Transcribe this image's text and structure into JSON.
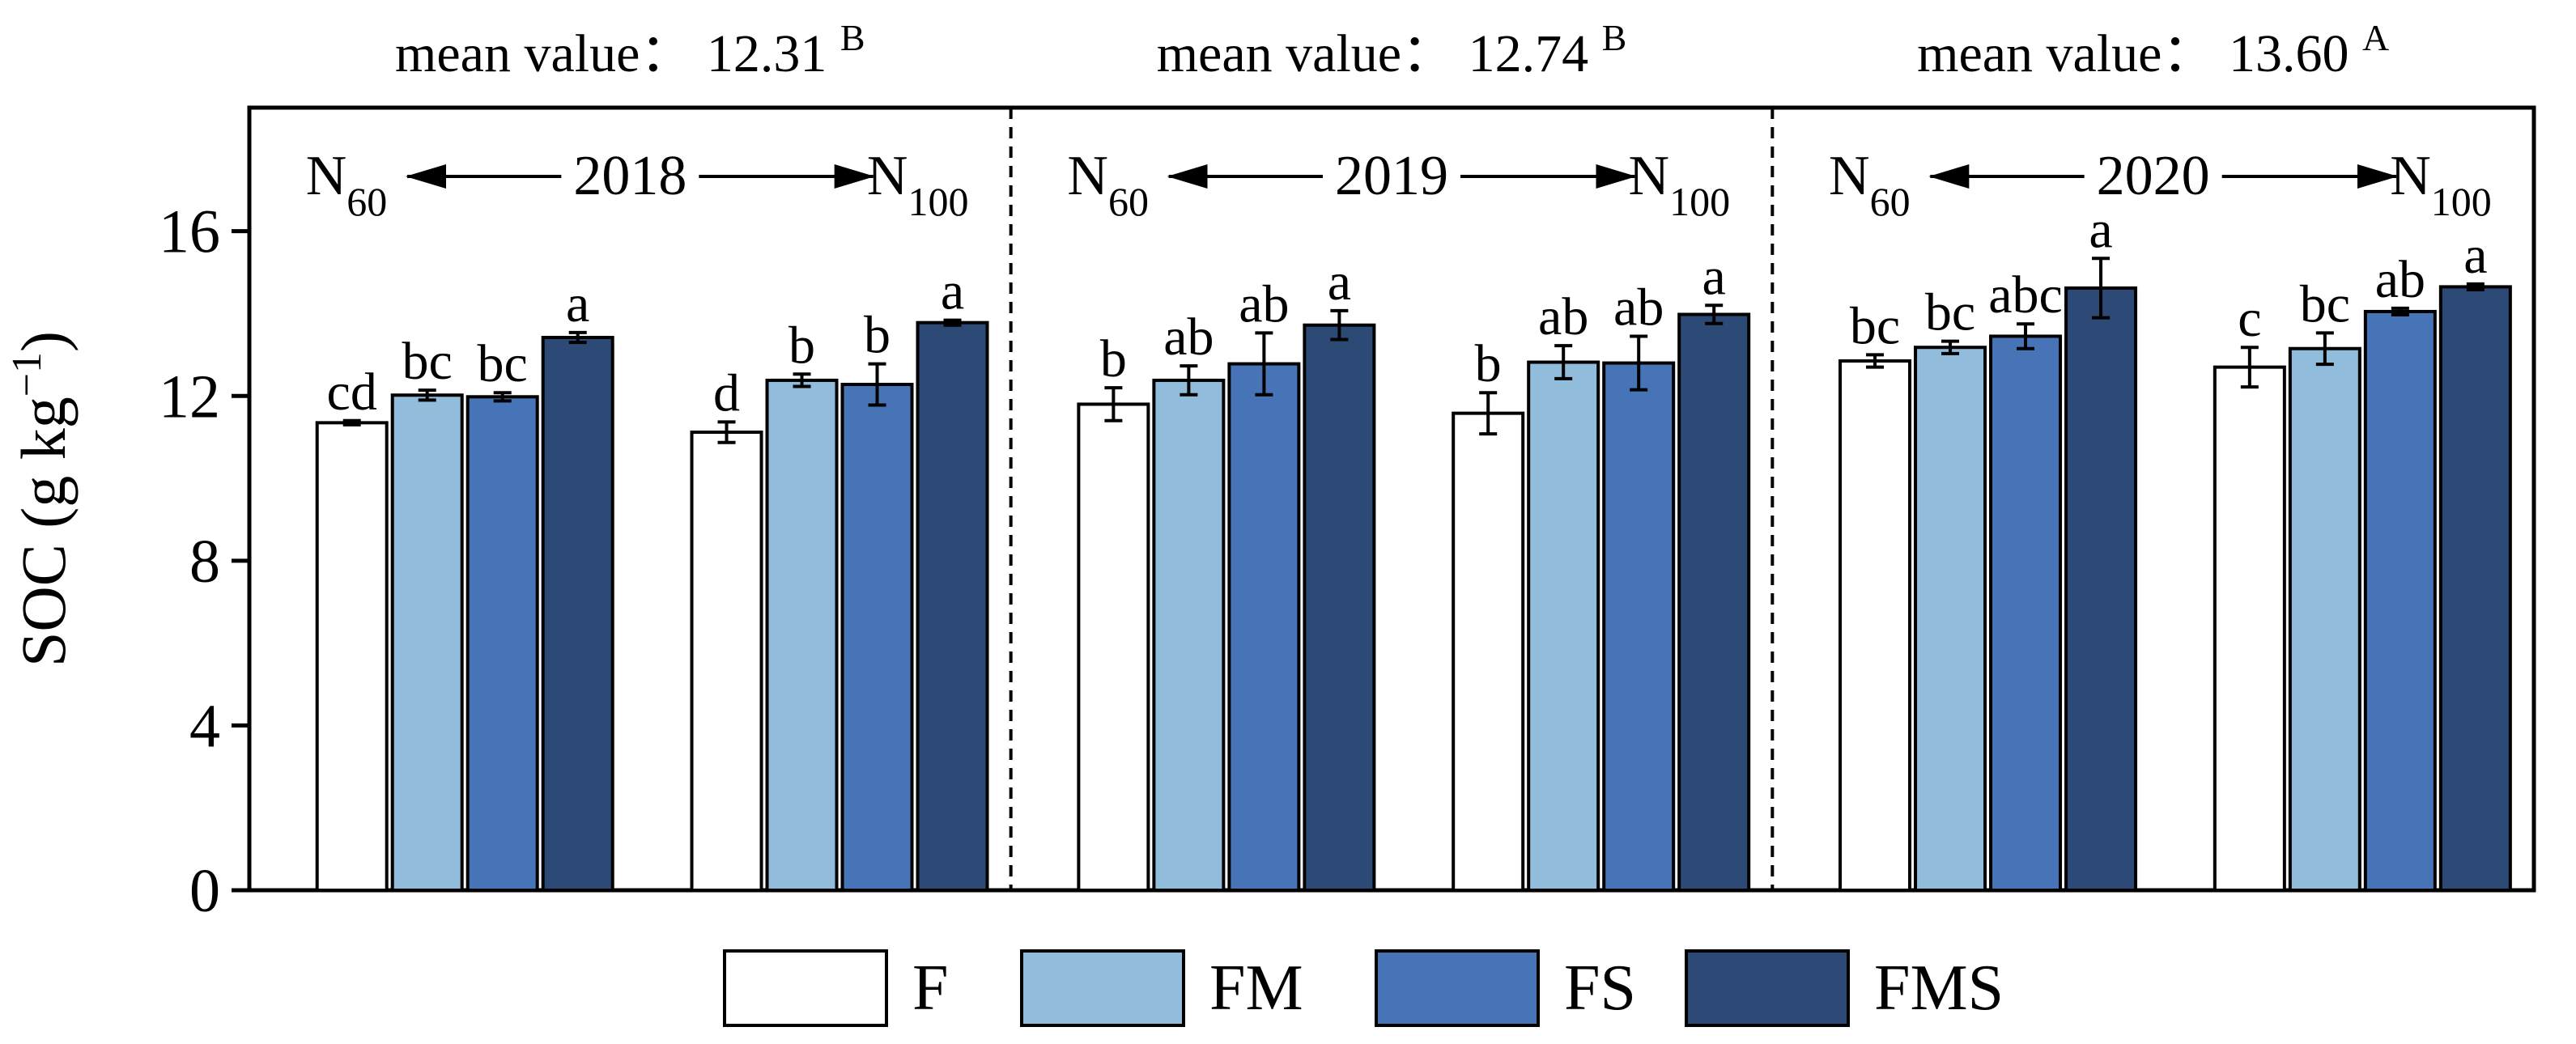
{
  "chart_data": {
    "type": "bar",
    "ylabel": "SOC (g kg",
    "ylabel_sup": "−1",
    "ylabel_close": ")",
    "ylim": [
      0,
      19
    ],
    "yticks": [
      "0",
      "4",
      "8",
      "12",
      "16"
    ],
    "ytick_values": [
      0,
      4,
      8,
      12,
      16
    ],
    "grid": false,
    "legend_position": "bottom",
    "colors": {
      "F": "#ffffff",
      "FM": "#91bcdc",
      "FS": "#4674b6",
      "FMS": "#2c4a75"
    },
    "series_names": [
      "F",
      "FM",
      "FS",
      "FMS"
    ],
    "panels": [
      {
        "year": "2018",
        "left_label": "N",
        "left_sub": "60",
        "right_label": "N",
        "right_sub": "100",
        "mean_label": "mean value：",
        "mean_value": "12.31",
        "mean_letter": "B",
        "groups": [
          {
            "name": "N60",
            "values": [
              11.35,
              12.02,
              11.98,
              13.42
            ],
            "errors": [
              0.05,
              0.12,
              0.1,
              0.12
            ],
            "letters": [
              "cd",
              "bc",
              "bc",
              "a"
            ]
          },
          {
            "name": "N100",
            "values": [
              11.12,
              12.38,
              12.28,
              13.78
            ],
            "errors": [
              0.25,
              0.15,
              0.5,
              0.06
            ],
            "letters": [
              "d",
              "b",
              "b",
              "a"
            ]
          }
        ]
      },
      {
        "year": "2019",
        "left_label": "N",
        "left_sub": "60",
        "right_label": "N",
        "right_sub": "100",
        "mean_label": "mean value：",
        "mean_value": "12.74",
        "mean_letter": "B",
        "groups": [
          {
            "name": "N60",
            "values": [
              11.8,
              12.38,
              12.78,
              13.72
            ],
            "errors": [
              0.4,
              0.35,
              0.75,
              0.35
            ],
            "letters": [
              "b",
              "ab",
              "ab",
              "a"
            ]
          },
          {
            "name": "N100",
            "values": [
              11.58,
              12.82,
              12.8,
              13.98
            ],
            "errors": [
              0.5,
              0.4,
              0.65,
              0.22
            ],
            "letters": [
              "b",
              "ab",
              "ab",
              "a"
            ]
          }
        ]
      },
      {
        "year": "2020",
        "left_label": "N",
        "left_sub": "60",
        "right_label": "N",
        "right_sub": "100",
        "mean_label": "mean value：",
        "mean_value": "13.60",
        "mean_letter": "A",
        "groups": [
          {
            "name": "N60",
            "values": [
              12.85,
              13.18,
              13.45,
              14.62
            ],
            "errors": [
              0.15,
              0.15,
              0.3,
              0.72
            ],
            "letters": [
              "bc",
              "bc",
              "abc",
              "a"
            ]
          },
          {
            "name": "N100",
            "values": [
              12.7,
              13.15,
              14.05,
              14.65
            ],
            "errors": [
              0.48,
              0.38,
              0.08,
              0.07
            ],
            "letters": [
              "c",
              "bc",
              "ab",
              "a"
            ]
          }
        ]
      }
    ]
  }
}
